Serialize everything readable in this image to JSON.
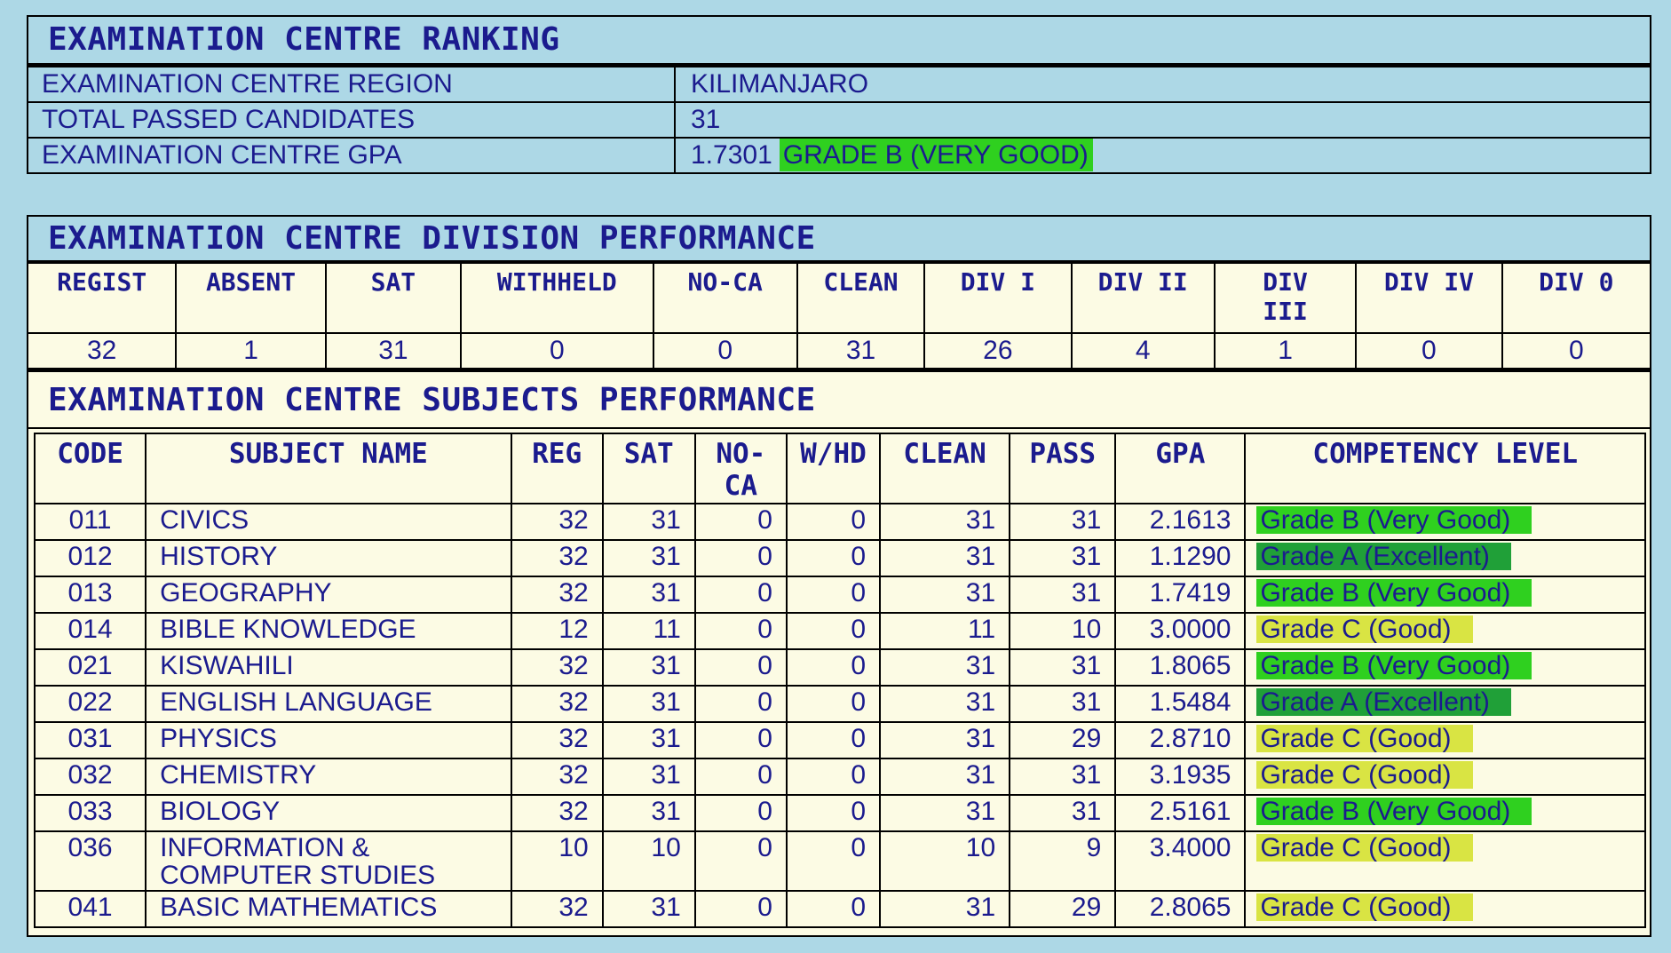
{
  "colors": {
    "page_bg": "#ADD8E6",
    "table_bg": "#FCFBE4",
    "text_navy": "#1B1B8E",
    "border": "#000000",
    "grades": {
      "A": "#20A038",
      "B": "#2FD01F",
      "C": "#D9E443"
    }
  },
  "ranking": {
    "title": "EXAMINATION CENTRE RANKING",
    "rows": [
      {
        "label": "EXAMINATION CENTRE REGION",
        "value": "KILIMANJARO"
      },
      {
        "label": "TOTAL PASSED CANDIDATES",
        "value": "31"
      },
      {
        "label": "EXAMINATION CENTRE GPA",
        "value": "1.7301",
        "grade_label": "GRADE B (VERY GOOD)",
        "grade": "B"
      }
    ]
  },
  "division": {
    "title": "EXAMINATION CENTRE DIVISION PERFORMANCE",
    "headers": [
      "REGIST",
      "ABSENT",
      "SAT",
      "WITHHELD",
      "NO-CA",
      "CLEAN",
      "DIV I",
      "DIV II",
      "DIV III",
      "DIV IV",
      "DIV 0"
    ],
    "values": [
      "32",
      "1",
      "31",
      "0",
      "0",
      "31",
      "26",
      "4",
      "1",
      "0",
      "0"
    ]
  },
  "subjects": {
    "title": "EXAMINATION CENTRE SUBJECTS PERFORMANCE",
    "headers": [
      "CODE",
      "SUBJECT NAME",
      "REG",
      "SAT",
      "NO-CA",
      "W/HD",
      "CLEAN",
      "PASS",
      "GPA",
      "COMPETENCY LEVEL"
    ],
    "rows": [
      {
        "code": "011",
        "name": "CIVICS",
        "reg": "32",
        "sat": "31",
        "no_ca": "0",
        "whd": "0",
        "clean": "31",
        "pass": "31",
        "gpa": "2.1613",
        "competency": "Grade B (Very Good)",
        "grade": "B"
      },
      {
        "code": "012",
        "name": "HISTORY",
        "reg": "32",
        "sat": "31",
        "no_ca": "0",
        "whd": "0",
        "clean": "31",
        "pass": "31",
        "gpa": "1.1290",
        "competency": "Grade A (Excellent)",
        "grade": "A"
      },
      {
        "code": "013",
        "name": "GEOGRAPHY",
        "reg": "32",
        "sat": "31",
        "no_ca": "0",
        "whd": "0",
        "clean": "31",
        "pass": "31",
        "gpa": "1.7419",
        "competency": "Grade B (Very Good)",
        "grade": "B"
      },
      {
        "code": "014",
        "name": "BIBLE KNOWLEDGE",
        "reg": "12",
        "sat": "11",
        "no_ca": "0",
        "whd": "0",
        "clean": "11",
        "pass": "10",
        "gpa": "3.0000",
        "competency": "Grade C (Good)",
        "grade": "C"
      },
      {
        "code": "021",
        "name": "KISWAHILI",
        "reg": "32",
        "sat": "31",
        "no_ca": "0",
        "whd": "0",
        "clean": "31",
        "pass": "31",
        "gpa": "1.8065",
        "competency": "Grade B (Very Good)",
        "grade": "B"
      },
      {
        "code": "022",
        "name": "ENGLISH LANGUAGE",
        "reg": "32",
        "sat": "31",
        "no_ca": "0",
        "whd": "0",
        "clean": "31",
        "pass": "31",
        "gpa": "1.5484",
        "competency": "Grade A (Excellent)",
        "grade": "A"
      },
      {
        "code": "031",
        "name": "PHYSICS",
        "reg": "32",
        "sat": "31",
        "no_ca": "0",
        "whd": "0",
        "clean": "31",
        "pass": "29",
        "gpa": "2.8710",
        "competency": "Grade C (Good)",
        "grade": "C"
      },
      {
        "code": "032",
        "name": "CHEMISTRY",
        "reg": "32",
        "sat": "31",
        "no_ca": "0",
        "whd": "0",
        "clean": "31",
        "pass": "31",
        "gpa": "3.1935",
        "competency": "Grade C (Good)",
        "grade": "C"
      },
      {
        "code": "033",
        "name": "BIOLOGY",
        "reg": "32",
        "sat": "31",
        "no_ca": "0",
        "whd": "0",
        "clean": "31",
        "pass": "31",
        "gpa": "2.5161",
        "competency": "Grade B (Very Good)",
        "grade": "B"
      },
      {
        "code": "036",
        "name": "INFORMATION & COMPUTER STUDIES",
        "reg": "10",
        "sat": "10",
        "no_ca": "0",
        "whd": "0",
        "clean": "10",
        "pass": "9",
        "gpa": "3.4000",
        "competency": "Grade C (Good)",
        "grade": "C"
      },
      {
        "code": "041",
        "name": "BASIC MATHEMATICS",
        "reg": "32",
        "sat": "31",
        "no_ca": "0",
        "whd": "0",
        "clean": "31",
        "pass": "29",
        "gpa": "2.8065",
        "competency": "Grade C (Good)",
        "grade": "C"
      }
    ]
  }
}
